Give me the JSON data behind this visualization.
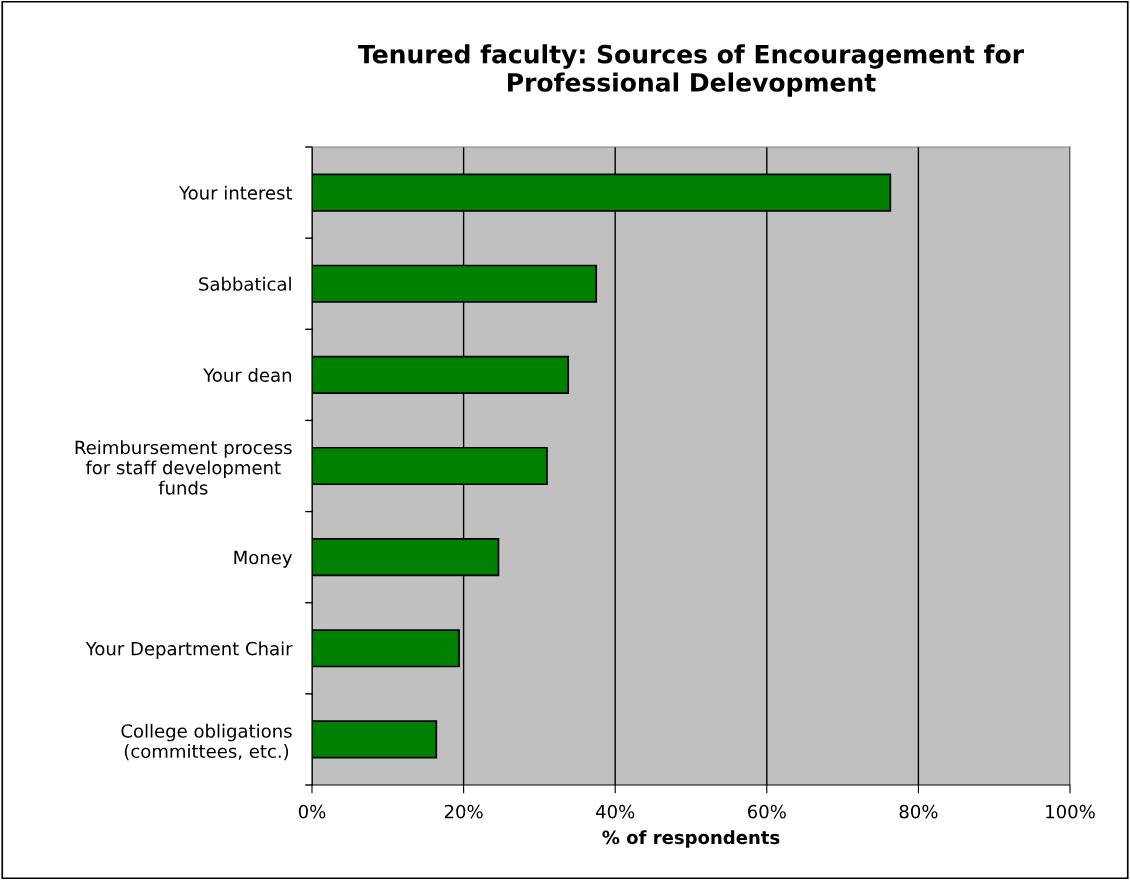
{
  "chart_data": {
    "type": "bar",
    "orientation": "horizontal",
    "title": "Tenured faculty: Sources of Encouragement for\nProfessional Delevopment",
    "xlabel": "% of respondents",
    "categories": [
      "Your interest",
      "Sabbatical",
      "Your dean",
      "Reimbursement process\nfor staff development\nfunds",
      "Money",
      "Your Department Chair",
      "College obligations\n(committees, etc.)"
    ],
    "values": [
      76.3,
      37.5,
      33.8,
      31.0,
      24.6,
      19.4,
      16.4
    ],
    "color": "#008000",
    "xlim": [
      0,
      100
    ],
    "xticks": [
      {
        "value": 0,
        "label": "0%"
      },
      {
        "value": 20,
        "label": "20%"
      },
      {
        "value": 40,
        "label": "40%"
      },
      {
        "value": 60,
        "label": "60%"
      },
      {
        "value": 80,
        "label": "80%"
      },
      {
        "value": 100,
        "label": "100%"
      }
    ],
    "grid": "x",
    "legend": false
  }
}
